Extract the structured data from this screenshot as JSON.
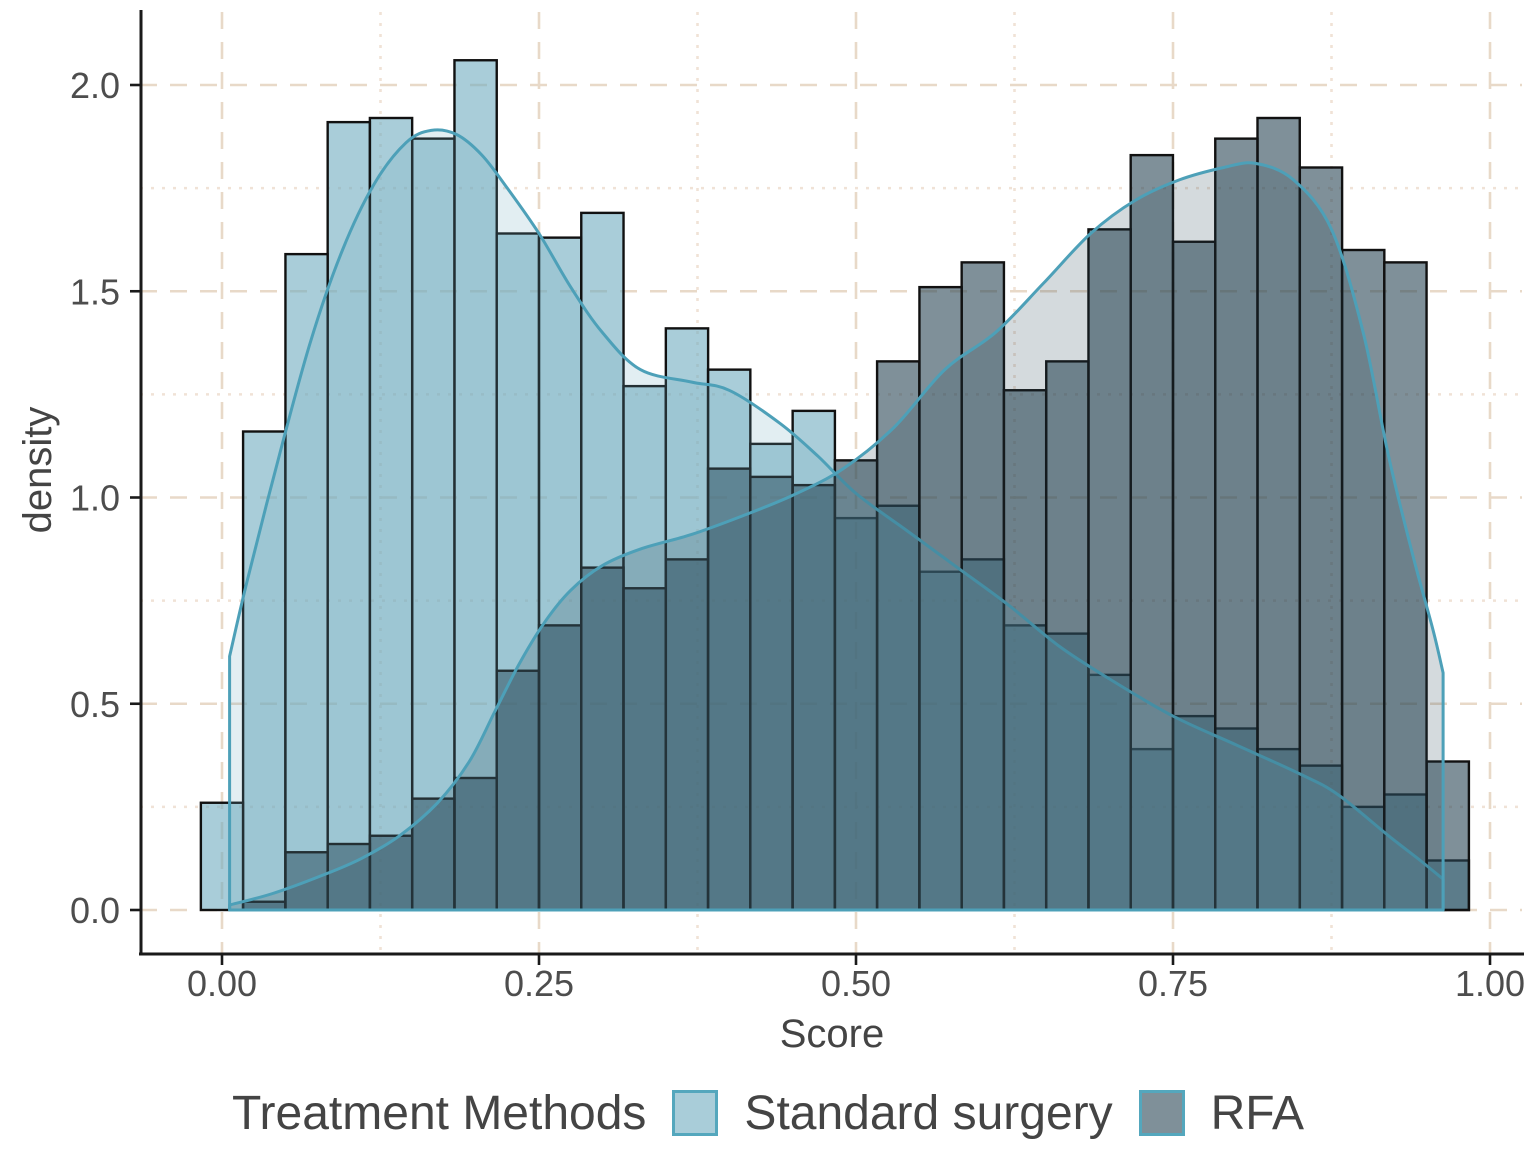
{
  "figure": {
    "x_axis_title": "Score",
    "y_axis_title": "density"
  },
  "legend": {
    "title": "Treatment Methods",
    "items": [
      {
        "label": "Standard surgery",
        "fill": "#a9cdd9",
        "border": "#54a7bd"
      },
      {
        "label": "RFA",
        "fill": "#7f9099",
        "border": "#54a7bd"
      }
    ]
  },
  "chart_data": {
    "type": "histogram-density-overlay",
    "title": "",
    "xlabel": "Score",
    "ylabel": "density",
    "x_range": [
      0,
      1
    ],
    "y_range": [
      0,
      2.06
    ],
    "bin_width": 0.0333,
    "bin_centers": [
      0.0,
      0.0333,
      0.0667,
      0.1,
      0.1333,
      0.1667,
      0.2,
      0.2333,
      0.2667,
      0.3,
      0.3333,
      0.3667,
      0.4,
      0.4333,
      0.4667,
      0.5,
      0.5333,
      0.5667,
      0.6,
      0.6333,
      0.6667,
      0.7,
      0.7333,
      0.7667,
      0.8,
      0.8333,
      0.8667,
      0.9,
      0.9333,
      0.9667
    ],
    "series": [
      {
        "name": "Standard surgery",
        "fill_base": "#70acc0",
        "bar_alpha": 0.6,
        "values": [
          0.26,
          1.16,
          1.59,
          1.91,
          1.92,
          1.87,
          2.06,
          1.64,
          1.63,
          1.69,
          1.27,
          1.41,
          1.31,
          1.13,
          1.21,
          0.95,
          0.98,
          0.82,
          0.85,
          0.69,
          0.67,
          0.57,
          0.39,
          0.47,
          0.44,
          0.39,
          0.35,
          0.25,
          0.28,
          0.12
        ]
      },
      {
        "name": "RFA",
        "fill_base": "#2a4655",
        "bar_alpha": 0.6,
        "values": [
          0,
          0.02,
          0.14,
          0.16,
          0.18,
          0.27,
          0.32,
          0.58,
          0.69,
          0.83,
          0.78,
          0.85,
          1.07,
          1.05,
          1.03,
          1.09,
          1.33,
          1.51,
          1.57,
          1.26,
          1.33,
          1.65,
          1.83,
          1.62,
          1.87,
          1.92,
          1.8,
          1.6,
          1.57,
          0.36
        ]
      }
    ],
    "density_curves": [
      {
        "name": "Standard surgery",
        "stroke": "#4da0b8",
        "fill_base": "#70acc0",
        "fill_alpha": 0.2,
        "clip_left": 0.006,
        "clip_right": 0.963,
        "points": [
          [
            0.006,
            0.615
          ],
          [
            0.02,
            0.8
          ],
          [
            0.045,
            1.1
          ],
          [
            0.07,
            1.38
          ],
          [
            0.095,
            1.6
          ],
          [
            0.12,
            1.76
          ],
          [
            0.145,
            1.86
          ],
          [
            0.165,
            1.89
          ],
          [
            0.185,
            1.88
          ],
          [
            0.205,
            1.83
          ],
          [
            0.225,
            1.75
          ],
          [
            0.25,
            1.64
          ],
          [
            0.275,
            1.51
          ],
          [
            0.3,
            1.4
          ],
          [
            0.33,
            1.31
          ],
          [
            0.37,
            1.28
          ],
          [
            0.4,
            1.26
          ],
          [
            0.44,
            1.18
          ],
          [
            0.47,
            1.1
          ],
          [
            0.5,
            1.01
          ],
          [
            0.54,
            0.92
          ],
          [
            0.58,
            0.83
          ],
          [
            0.62,
            0.74
          ],
          [
            0.66,
            0.64
          ],
          [
            0.7,
            0.56
          ],
          [
            0.75,
            0.47
          ],
          [
            0.8,
            0.4
          ],
          [
            0.85,
            0.33
          ],
          [
            0.88,
            0.28
          ],
          [
            0.92,
            0.18
          ],
          [
            0.945,
            0.12
          ],
          [
            0.963,
            0.075
          ]
        ]
      },
      {
        "name": "RFA",
        "stroke": "#4da0b8",
        "fill_base": "#2a4655",
        "fill_alpha": 0.2,
        "clip_left": 0.006,
        "clip_right": 0.963,
        "points": [
          [
            0.006,
            0.012
          ],
          [
            0.04,
            0.04
          ],
          [
            0.08,
            0.085
          ],
          [
            0.11,
            0.125
          ],
          [
            0.14,
            0.18
          ],
          [
            0.17,
            0.26
          ],
          [
            0.195,
            0.36
          ],
          [
            0.215,
            0.48
          ],
          [
            0.235,
            0.6
          ],
          [
            0.255,
            0.7
          ],
          [
            0.275,
            0.775
          ],
          [
            0.3,
            0.835
          ],
          [
            0.33,
            0.875
          ],
          [
            0.37,
            0.91
          ],
          [
            0.41,
            0.955
          ],
          [
            0.45,
            1.005
          ],
          [
            0.49,
            1.07
          ],
          [
            0.53,
            1.17
          ],
          [
            0.57,
            1.31
          ],
          [
            0.61,
            1.4
          ],
          [
            0.648,
            1.52
          ],
          [
            0.685,
            1.64
          ],
          [
            0.72,
            1.72
          ],
          [
            0.755,
            1.77
          ],
          [
            0.79,
            1.8
          ],
          [
            0.815,
            1.81
          ],
          [
            0.845,
            1.77
          ],
          [
            0.875,
            1.65
          ],
          [
            0.9,
            1.4
          ],
          [
            0.92,
            1.1
          ],
          [
            0.94,
            0.85
          ],
          [
            0.955,
            0.68
          ],
          [
            0.963,
            0.575
          ]
        ]
      }
    ],
    "x_ticks": {
      "labels": [
        "0.00",
        "0.25",
        "0.50",
        "0.75",
        "1.00"
      ],
      "values": [
        0,
        0.25,
        0.5,
        0.75,
        1
      ]
    },
    "y_ticks": {
      "labels": [
        "0.0",
        "0.5",
        "1.0",
        "1.5",
        "2.0"
      ],
      "values": [
        0,
        0.5,
        1,
        1.5,
        2
      ]
    },
    "grid": {
      "major_color": "#e8d9c8",
      "minor_color": "#f0e2d6",
      "major_dash": "17 13",
      "minor_dash": "3 8",
      "minor_x_values": [
        0.125,
        0.375,
        0.625,
        0.875
      ],
      "minor_y_values": [
        0.25,
        0.75,
        1.25,
        1.75
      ]
    },
    "legend_position": "bottom",
    "bar_stroke": "#111111",
    "axis_color": "#1a1a1a",
    "label_color": "#4d4d4d",
    "plot_bg": "#ffffff"
  }
}
